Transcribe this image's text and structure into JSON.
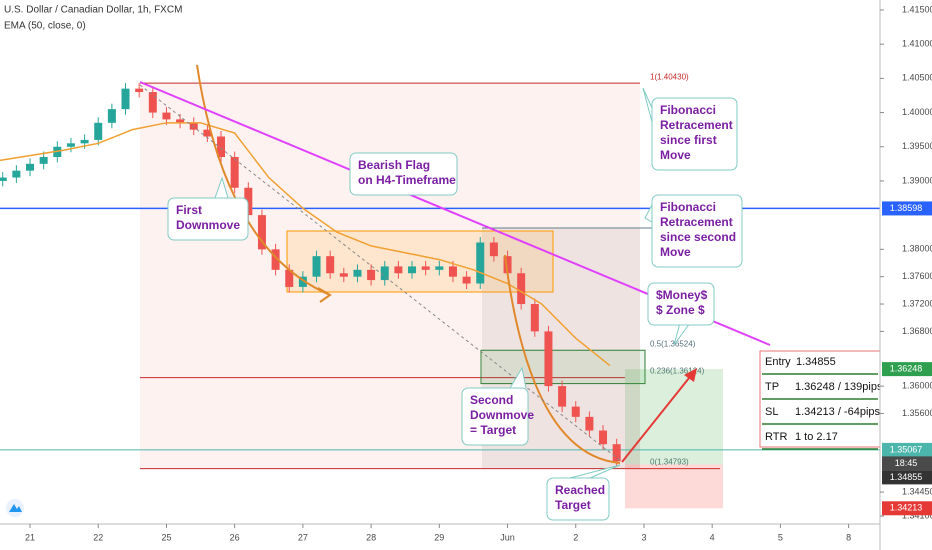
{
  "header": {
    "title": "U.S. Dollar / Canadian Dollar, 1h, FXCM",
    "indicator": "EMA (50, close, 0)"
  },
  "chart_data": {
    "type": "candlestick",
    "x": [
      -0.4,
      -0.2,
      0,
      0.2,
      0.4,
      0.6,
      0.8,
      1.0,
      1.2,
      1.4,
      1.6,
      1.8,
      2.0,
      2.2,
      2.4,
      2.6,
      2.8,
      3.0,
      3.2,
      3.4,
      3.6,
      3.8,
      4.0,
      4.2,
      4.4,
      4.6,
      4.8,
      5.0,
      5.2,
      5.4,
      5.6,
      5.8,
      6.0,
      6.2,
      6.4,
      6.6,
      6.8,
      7.0,
      7.2,
      7.4,
      7.6,
      7.8,
      8.0,
      8.2,
      8.4,
      8.6
    ],
    "open": [
      1.39,
      1.3905,
      1.3915,
      1.3925,
      1.3935,
      1.395,
      1.3955,
      1.396,
      1.3985,
      1.4005,
      1.4035,
      1.403,
      1.4,
      1.399,
      1.3985,
      1.3975,
      1.3965,
      1.3935,
      1.389,
      1.385,
      1.38,
      1.377,
      1.3745,
      1.376,
      1.379,
      1.3765,
      1.376,
      1.377,
      1.3755,
      1.3775,
      1.3765,
      1.3775,
      1.377,
      1.3775,
      1.376,
      1.375,
      1.381,
      1.379,
      1.3765,
      1.372,
      1.368,
      1.36,
      1.357,
      1.3555,
      1.3535,
      1.3515
    ],
    "high": [
      1.3913,
      1.3923,
      1.3933,
      1.3943,
      1.3958,
      1.3963,
      1.3968,
      1.3993,
      1.4013,
      1.4043,
      1.4043,
      1.4038,
      1.4008,
      1.3998,
      1.3993,
      1.3983,
      1.3973,
      1.3943,
      1.3898,
      1.3858,
      1.3808,
      1.3778,
      1.3768,
      1.3798,
      1.3798,
      1.3773,
      1.3778,
      1.3778,
      1.3783,
      1.3783,
      1.3783,
      1.3783,
      1.3783,
      1.3783,
      1.3768,
      1.3818,
      1.3818,
      1.3798,
      1.3773,
      1.3728,
      1.3688,
      1.3608,
      1.3578,
      1.3563,
      1.3543,
      1.3523
    ],
    "low": [
      1.3892,
      1.3897,
      1.3907,
      1.3917,
      1.3927,
      1.3942,
      1.3947,
      1.3952,
      1.3977,
      1.3997,
      1.4022,
      1.3992,
      1.3982,
      1.3977,
      1.3967,
      1.3957,
      1.3927,
      1.3882,
      1.3842,
      1.3792,
      1.3762,
      1.3737,
      1.3737,
      1.3752,
      1.3757,
      1.3752,
      1.3752,
      1.3747,
      1.3747,
      1.3757,
      1.3757,
      1.3762,
      1.3762,
      1.3752,
      1.3742,
      1.3742,
      1.3782,
      1.3757,
      1.3712,
      1.3672,
      1.3592,
      1.3562,
      1.3547,
      1.3527,
      1.3507,
      1.3482
    ],
    "close": [
      1.3905,
      1.3915,
      1.3925,
      1.3935,
      1.395,
      1.3955,
      1.396,
      1.3985,
      1.4005,
      1.4035,
      1.403,
      1.4,
      1.399,
      1.3985,
      1.3975,
      1.3965,
      1.3935,
      1.389,
      1.385,
      1.38,
      1.377,
      1.3745,
      1.376,
      1.379,
      1.3765,
      1.376,
      1.377,
      1.3755,
      1.3775,
      1.3765,
      1.3775,
      1.377,
      1.3775,
      1.376,
      1.375,
      1.381,
      1.379,
      1.3765,
      1.372,
      1.368,
      1.36,
      1.357,
      1.3555,
      1.3535,
      1.3515,
      1.349
    ],
    "up_color": "#26a69a",
    "down_color": "#ef5350",
    "xlim": [
      -0.44,
      12.46
    ],
    "xticks": [
      {
        "value": 0,
        "label": "21"
      },
      {
        "value": 1,
        "label": "22"
      },
      {
        "value": 2,
        "label": "25"
      },
      {
        "value": 3,
        "label": "26"
      },
      {
        "value": 4,
        "label": "27"
      },
      {
        "value": 5,
        "label": "28"
      },
      {
        "value": 6,
        "label": "29"
      },
      {
        "value": 7,
        "label": "Jun"
      },
      {
        "value": 8,
        "label": "2"
      },
      {
        "value": 9,
        "label": "3"
      },
      {
        "value": 10,
        "label": "4"
      },
      {
        "value": 11,
        "label": "5"
      },
      {
        "value": 12,
        "label": "8"
      }
    ],
    "ylim": [
      1.33603,
      1.41646
    ],
    "yticks": [
      {
        "value": 1.415,
        "label": "1.41500"
      },
      {
        "value": 1.41,
        "label": "1.41000"
      },
      {
        "value": 1.405,
        "label": "1.40500"
      },
      {
        "value": 1.4,
        "label": "1.40000"
      },
      {
        "value": 1.395,
        "label": "1.39500"
      },
      {
        "value": 1.39,
        "label": "1.39000"
      },
      {
        "value": 1.38,
        "label": "1.38000"
      },
      {
        "value": 1.376,
        "label": "1.37600"
      },
      {
        "value": 1.372,
        "label": "1.37200"
      },
      {
        "value": 1.368,
        "label": "1.36800"
      },
      {
        "value": 1.36,
        "label": "1.36000"
      },
      {
        "value": 1.356,
        "label": "1.35600"
      },
      {
        "value": 1.3445,
        "label": "1.34450"
      },
      {
        "value": 1.341,
        "label": "1.34100"
      }
    ],
    "ema": {
      "color": "#f0a030",
      "x": [
        -0.44,
        0.5,
        1.0,
        1.5,
        2.0,
        2.5,
        3.0,
        3.5,
        4.0,
        4.5,
        5.0,
        5.5,
        6.0,
        6.5,
        7.0,
        7.5,
        8.0,
        8.5
      ],
      "values": [
        1.393,
        1.3945,
        1.3955,
        1.3975,
        1.3985,
        1.3985,
        1.397,
        1.3905,
        1.386,
        1.3825,
        1.3805,
        1.3795,
        1.3785,
        1.377,
        1.375,
        1.372,
        1.367,
        1.363
      ]
    },
    "levels": [
      {
        "value": 1.38598,
        "label": "1.38598",
        "color": "#2962ff"
      },
      {
        "value": 1.35067,
        "label": "1.35067",
        "color": "#4db6ac"
      }
    ],
    "fib": [
      {
        "value": 1.4043,
        "label": "1(1.40430)"
      },
      {
        "value": 1.36524,
        "label": "0.5(1.36524)"
      },
      {
        "value": 1.36124,
        "label": "0.236(1.36124)"
      },
      {
        "value": 1.34793,
        "label": "0(1.34793)"
      }
    ],
    "position": {
      "target": {
        "value": 1.36248,
        "label": "1.36248"
      },
      "entry": {
        "value": 1.34855,
        "label": "1.34855"
      },
      "stop": {
        "value": 1.34213,
        "label": "1.34213"
      },
      "countdown": "18:45"
    }
  },
  "annotations": [
    {
      "lines": [
        "First",
        "Downmove"
      ]
    },
    {
      "lines": [
        "Bearish Flag",
        "on H4-Timeframe"
      ]
    },
    {
      "lines": [
        "Fibonacci",
        "Retracement",
        "since first",
        "Move"
      ]
    },
    {
      "lines": [
        "Fibonacci",
        "Retracement",
        "since second",
        "Move"
      ]
    },
    {
      "lines": [
        "$Money$",
        "$ Zone $"
      ]
    },
    {
      "lines": [
        "Second",
        "Downmove",
        "= Target"
      ]
    },
    {
      "lines": [
        "Reached",
        "Target"
      ]
    }
  ],
  "summary": {
    "rows": [
      [
        "Entry",
        "1.34855"
      ],
      [
        "TP",
        "1.36248 / 139pips"
      ],
      [
        "SL",
        "1.34213 / -64pips"
      ],
      [
        "RTR",
        "1 to 2.17"
      ]
    ]
  }
}
